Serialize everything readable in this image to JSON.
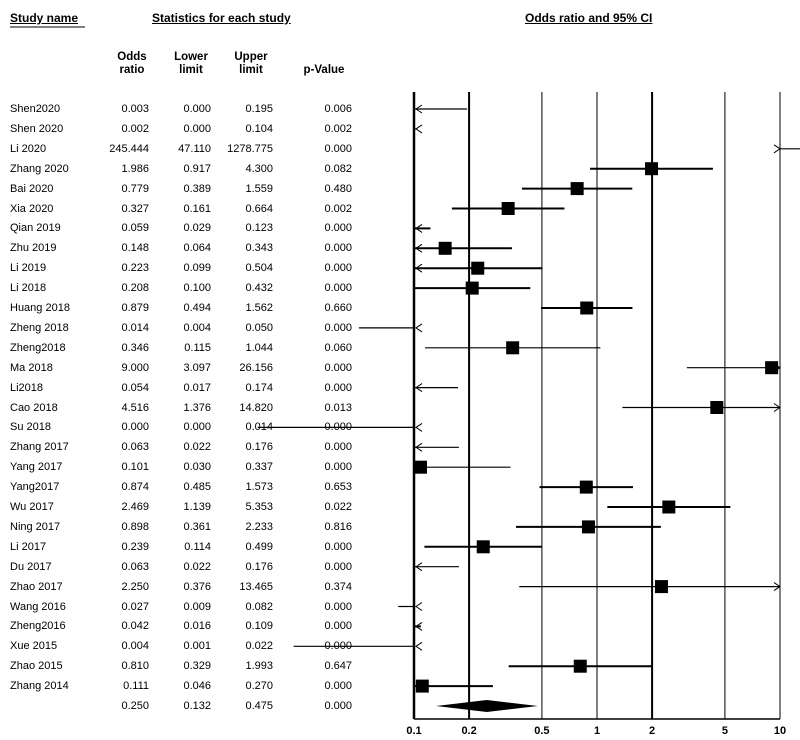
{
  "headers": {
    "study_name": "Study name",
    "statistics": "Statistics for each study",
    "plot_title": "Odds ratio and 95% CI",
    "odds_ratio": "Odds\nratio",
    "lower_limit": "Lower\nlimit",
    "upper_limit": "Upper\nlimit",
    "p_value": "p-Value"
  },
  "chart_data": {
    "type": "forest",
    "title": "Odds ratio and 95% CI",
    "x_scale": "log",
    "xlim": [
      0.1,
      10
    ],
    "x_ticks": [
      0.1,
      0.2,
      0.5,
      1,
      2,
      5,
      10
    ],
    "x_tick_labels": [
      "0.1",
      "0.2",
      "0.5",
      "1",
      "2",
      "5",
      "10"
    ],
    "columns": [
      "Odds ratio",
      "Lower limit",
      "Upper limit",
      "p-Value"
    ],
    "studies": [
      {
        "name": "Shen2020",
        "or": "0.003",
        "lower": "0.000",
        "upper": "0.195",
        "p": "0.006"
      },
      {
        "name": "Shen 2020",
        "or": "0.002",
        "lower": "0.000",
        "upper": "0.104",
        "p": "0.002"
      },
      {
        "name": "Li 2020",
        "or": "245.444",
        "lower": "47.110",
        "upper": "1278.775",
        "p": "0.000"
      },
      {
        "name": "Zhang 2020",
        "or": "1.986",
        "lower": "0.917",
        "upper": "4.300",
        "p": "0.082"
      },
      {
        "name": "Bai 2020",
        "or": "0.779",
        "lower": "0.389",
        "upper": "1.559",
        "p": "0.480"
      },
      {
        "name": "Xia 2020",
        "or": "0.327",
        "lower": "0.161",
        "upper": "0.664",
        "p": "0.002"
      },
      {
        "name": "Qian 2019",
        "or": "0.059",
        "lower": "0.029",
        "upper": "0.123",
        "p": "0.000"
      },
      {
        "name": "Zhu 2019",
        "or": "0.148",
        "lower": "0.064",
        "upper": "0.343",
        "p": "0.000"
      },
      {
        "name": "Li 2019",
        "or": "0.223",
        "lower": "0.099",
        "upper": "0.504",
        "p": "0.000"
      },
      {
        "name": "Li 2018",
        "or": "0.208",
        "lower": "0.100",
        "upper": "0.432",
        "p": "0.000"
      },
      {
        "name": "Huang 2018",
        "or": "0.879",
        "lower": "0.494",
        "upper": "1.562",
        "p": "0.660"
      },
      {
        "name": "Zheng 2018",
        "or": "0.014",
        "lower": "0.004",
        "upper": "0.050",
        "p": "0.000"
      },
      {
        "name": "Zheng2018",
        "or": "0.346",
        "lower": "0.115",
        "upper": "1.044",
        "p": "0.060"
      },
      {
        "name": "Ma 2018",
        "or": "9.000",
        "lower": "3.097",
        "upper": "26.156",
        "p": "0.000"
      },
      {
        "name": "Li2018",
        "or": "0.054",
        "lower": "0.017",
        "upper": "0.174",
        "p": "0.000"
      },
      {
        "name": "Cao 2018",
        "or": "4.516",
        "lower": "1.376",
        "upper": "14.820",
        "p": "0.013"
      },
      {
        "name": "Su 2018",
        "or": "0.000",
        "lower": "0.000",
        "upper": "0.014",
        "p": "0.000"
      },
      {
        "name": "Zhang 2017",
        "or": "0.063",
        "lower": "0.022",
        "upper": "0.176",
        "p": "0.000"
      },
      {
        "name": "Yang 2017",
        "or": "0.101",
        "lower": "0.030",
        "upper": "0.337",
        "p": "0.000"
      },
      {
        "name": "Yang2017",
        "or": "0.874",
        "lower": "0.485",
        "upper": "1.573",
        "p": "0.653"
      },
      {
        "name": "Wu 2017",
        "or": "2.469",
        "lower": "1.139",
        "upper": "5.353",
        "p": "0.022"
      },
      {
        "name": "Ning 2017",
        "or": "0.898",
        "lower": "0.361",
        "upper": "2.233",
        "p": "0.816"
      },
      {
        "name": "Li 2017",
        "or": "0.239",
        "lower": "0.114",
        "upper": "0.499",
        "p": "0.000"
      },
      {
        "name": "Du 2017",
        "or": "0.063",
        "lower": "0.022",
        "upper": "0.176",
        "p": "0.000"
      },
      {
        "name": "Zhao 2017",
        "or": "2.250",
        "lower": "0.376",
        "upper": "13.465",
        "p": "0.374"
      },
      {
        "name": "Wang 2016",
        "or": "0.027",
        "lower": "0.009",
        "upper": "0.082",
        "p": "0.000"
      },
      {
        "name": "Zheng2016",
        "or": "0.042",
        "lower": "0.016",
        "upper": "0.109",
        "p": "0.000"
      },
      {
        "name": "Xue 2015",
        "or": "0.004",
        "lower": "0.001",
        "upper": "0.022",
        "p": "0.000"
      },
      {
        "name": "Zhao 2015",
        "or": "0.810",
        "lower": "0.329",
        "upper": "1.993",
        "p": "0.647"
      },
      {
        "name": "Zhang 2014",
        "or": "0.111",
        "lower": "0.046",
        "upper": "0.270",
        "p": "0.000"
      }
    ],
    "summary": {
      "or": "0.250",
      "lower": "0.132",
      "upper": "0.475",
      "p": "0.000"
    }
  }
}
